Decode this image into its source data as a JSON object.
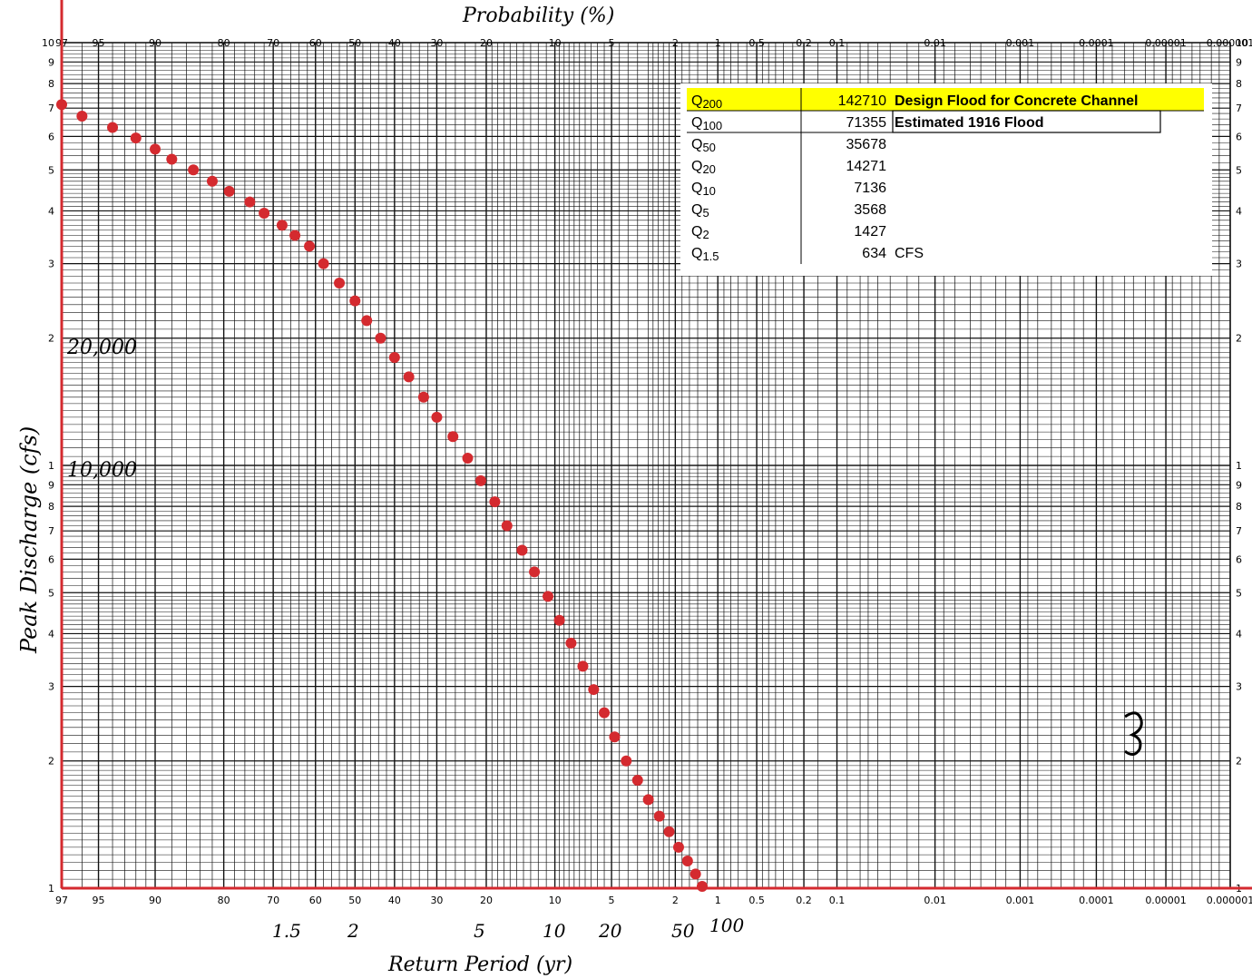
{
  "chart_data": {
    "type": "scatter",
    "title": "Probability (%)",
    "xlabel": "Return Period (yr)",
    "ylabel": "Peak Discharge (cfs)",
    "y_scale": "log",
    "x_scale": "normal-probability",
    "ylim": [
      1000,
      100000
    ],
    "probability_ticks": [
      "97",
      "95",
      "90",
      "80",
      "70",
      "60",
      "50",
      "40",
      "30",
      "20",
      "10",
      "5",
      "2",
      "1",
      "0.5",
      "0.2",
      "0.1",
      "0.01",
      "0.001",
      "0.0001",
      "0.00001",
      "0.000001"
    ],
    "probability_ticks_top": [
      "97",
      "95",
      "90",
      "80",
      "70",
      "60",
      "50",
      "40",
      "30",
      "20",
      "10",
      "5",
      "2",
      "1",
      "0.5",
      "0.2",
      "0.1",
      "0.01",
      "0.001",
      "0.0001",
      "0.00001",
      "0.000001"
    ],
    "log_ticks_left": [
      "10",
      "9",
      "8",
      "7",
      "6",
      "5",
      "4",
      "3",
      "2",
      "1",
      "9",
      "8",
      "7",
      "6",
      "5",
      "4",
      "3",
      "2",
      "1"
    ],
    "log_ticks_right": [
      "10",
      "9",
      "8",
      "7",
      "6",
      "5",
      "4",
      "3",
      "2",
      "1",
      "9",
      "8",
      "7",
      "6",
      "5",
      "4",
      "3",
      "2",
      "1"
    ],
    "y_annotations": [
      "20,000",
      "10,000"
    ],
    "return_period_labels": [
      "1.5",
      "2",
      "5",
      "10",
      "20",
      "50",
      "100"
    ],
    "series": [
      {
        "x": [
          97,
          96,
          94,
          92,
          90,
          88,
          85,
          82,
          79,
          75,
          72,
          68,
          65,
          61.5,
          58,
          54,
          50,
          47,
          43.5,
          40,
          36.5,
          33,
          30,
          26.5,
          23.5,
          21,
          18.5,
          16.5,
          14.2,
          12.5,
          10.8,
          9.5,
          8.3,
          7.2,
          6.3,
          5.5,
          4.8,
          4.1,
          3.5,
          3.0,
          2.55,
          2.2,
          1.9,
          1.65,
          1.45,
          1.3
        ],
        "y": [
          71355,
          67000,
          63000,
          59500,
          56000,
          53000,
          50000,
          47000,
          44500,
          42000,
          39500,
          37000,
          35000,
          33000,
          30000,
          27000,
          24500,
          22000,
          20000,
          18000,
          16200,
          14500,
          13000,
          11700,
          10400,
          9200,
          8200,
          7200,
          6300,
          5600,
          4900,
          4300,
          3800,
          3350,
          2950,
          2600,
          2280,
          2000,
          1800,
          1620,
          1480,
          1360,
          1250,
          1160,
          1080,
          1010
        ]
      }
    ]
  },
  "colors": {
    "points": "#d42a2f",
    "axes": "#d42a2f",
    "highlight": "#ffff00",
    "grid": "#111111"
  },
  "table": {
    "rows": [
      {
        "label": "Q",
        "sub": "200",
        "value": "142710",
        "note": "Design Flood for Concrete Channel"
      },
      {
        "label": "Q",
        "sub": "100",
        "value": "71355",
        "note": "Estimated 1916 Flood"
      },
      {
        "label": "Q",
        "sub": "50",
        "value": "35678",
        "note": ""
      },
      {
        "label": "Q",
        "sub": "20",
        "value": "14271",
        "note": ""
      },
      {
        "label": "Q",
        "sub": "10",
        "value": "7136",
        "note": ""
      },
      {
        "label": "Q",
        "sub": "5",
        "value": "3568",
        "note": ""
      },
      {
        "label": "Q",
        "sub": "2",
        "value": "1427",
        "note": ""
      },
      {
        "label": "Q",
        "sub": "1.5",
        "value": "634",
        "note": "CFS"
      }
    ]
  }
}
